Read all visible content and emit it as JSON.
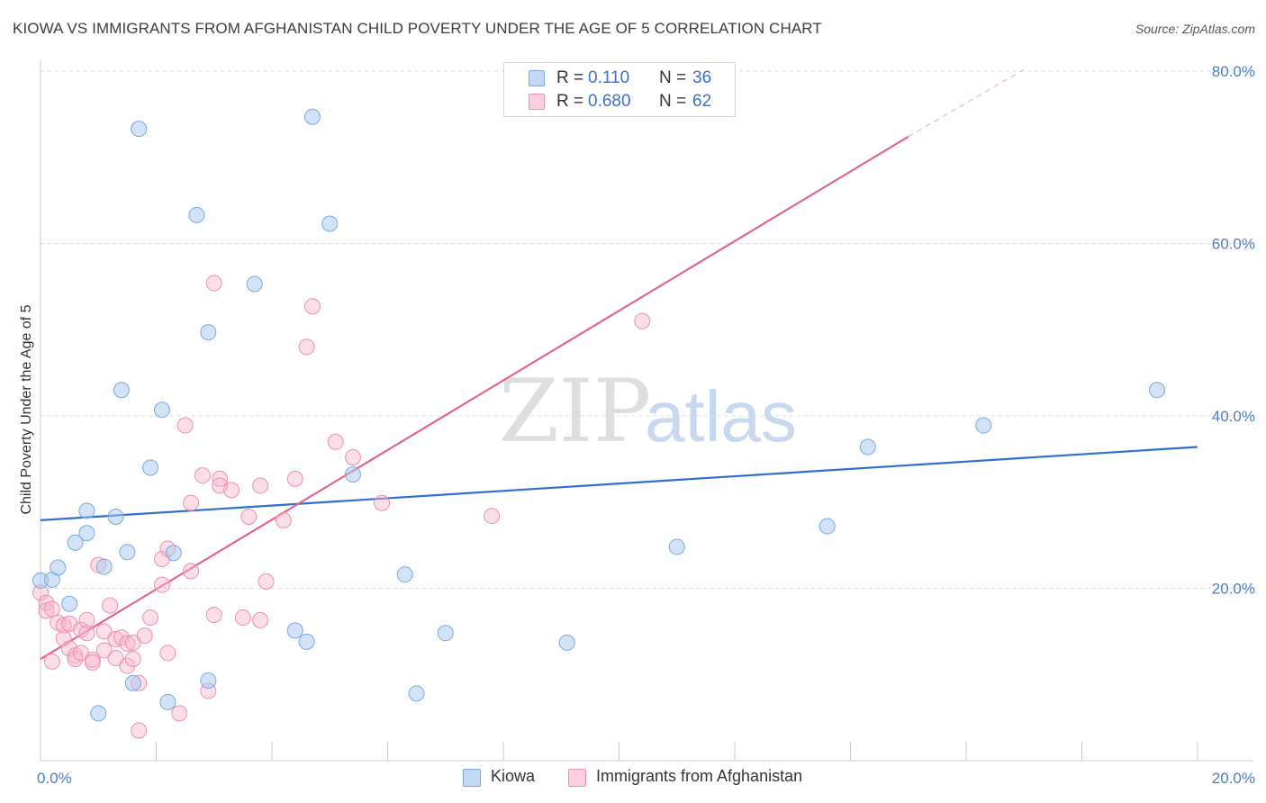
{
  "title": "KIOWA VS IMMIGRANTS FROM AFGHANISTAN CHILD POVERTY UNDER THE AGE OF 5 CORRELATION CHART",
  "source": "Source: ZipAtlas.com",
  "legend_top": {
    "rows": [
      {
        "r_label": "R = ",
        "r_value": "0.110",
        "n_label": "N = ",
        "n_value": "36",
        "color": "#a8c8f0"
      },
      {
        "r_label": "R = ",
        "r_value": "0.680",
        "n_label": "N = ",
        "n_value": "62",
        "color": "#f7b6c9"
      }
    ]
  },
  "legend_bottom": [
    {
      "label": "Kiowa",
      "color": "#a8c8f0"
    },
    {
      "label": "Immigrants from Afghanistan",
      "color": "#f7b6c9"
    }
  ],
  "watermark": {
    "zip": "ZIP",
    "atlas": "atlas"
  },
  "colors": {
    "blue_fill": "#a8c8f0",
    "blue_stroke": "#7aa8e0",
    "blue_line": "#2f6fd0",
    "pink_fill": "#f7b6c9",
    "pink_stroke": "#ec8fae",
    "pink_line": "#e0668f"
  },
  "chart_data": {
    "type": "scatter",
    "title": "KIOWA VS IMMIGRANTS FROM AFGHANISTAN CHILD POVERTY UNDER THE AGE OF 5 CORRELATION CHART",
    "xlabel": "",
    "ylabel": "Child Poverty Under the Age of 5",
    "xlim": [
      0,
      20
    ],
    "ylim": [
      0,
      80
    ],
    "x_tick_labels": [
      "0.0%",
      "20.0%"
    ],
    "y_ticks": [
      20,
      40,
      60,
      80
    ],
    "y_tick_labels": [
      "20.0%",
      "40.0%",
      "60.0%",
      "80.0%"
    ],
    "grid": true,
    "series": [
      {
        "name": "Kiowa",
        "r": 0.11,
        "n": 36,
        "trend": {
          "x0": 0,
          "y0": 27.9,
          "x1": 20,
          "y1": 36.4
        },
        "points": [
          [
            0.0,
            20.9
          ],
          [
            0.2,
            21.0
          ],
          [
            0.3,
            22.4
          ],
          [
            0.5,
            18.2
          ],
          [
            0.6,
            25.3
          ],
          [
            0.8,
            29.0
          ],
          [
            0.8,
            26.4
          ],
          [
            1.0,
            5.5
          ],
          [
            1.1,
            22.5
          ],
          [
            1.3,
            28.3
          ],
          [
            1.4,
            43.0
          ],
          [
            1.5,
            24.2
          ],
          [
            1.6,
            9.0
          ],
          [
            1.7,
            73.3
          ],
          [
            1.9,
            34.0
          ],
          [
            2.1,
            40.7
          ],
          [
            2.2,
            6.8
          ],
          [
            2.3,
            24.1
          ],
          [
            2.7,
            63.3
          ],
          [
            2.9,
            49.7
          ],
          [
            2.9,
            9.3
          ],
          [
            3.7,
            55.3
          ],
          [
            4.4,
            15.1
          ],
          [
            4.6,
            13.8
          ],
          [
            4.7,
            74.7
          ],
          [
            5.0,
            62.3
          ],
          [
            5.4,
            33.2
          ],
          [
            6.3,
            21.6
          ],
          [
            6.5,
            7.8
          ],
          [
            7.0,
            14.8
          ],
          [
            9.1,
            13.7
          ],
          [
            11.0,
            24.8
          ],
          [
            13.6,
            27.2
          ],
          [
            14.3,
            36.4
          ],
          [
            16.3,
            38.9
          ],
          [
            19.3,
            43.0
          ]
        ]
      },
      {
        "name": "Immigrants from Afghanistan",
        "r": 0.68,
        "n": 62,
        "trend": {
          "x0": 0,
          "y0": 11.8,
          "x1": 15,
          "y1": 72.4
        },
        "trend_dashed": {
          "x0": 15,
          "y0": 72.4,
          "x1": 17.0,
          "y1": 80.2
        },
        "points": [
          [
            0.0,
            19.5
          ],
          [
            0.1,
            18.3
          ],
          [
            0.1,
            17.4
          ],
          [
            0.2,
            17.6
          ],
          [
            0.2,
            11.5
          ],
          [
            0.3,
            16.0
          ],
          [
            0.4,
            14.2
          ],
          [
            0.4,
            15.7
          ],
          [
            0.5,
            15.9
          ],
          [
            0.5,
            13.0
          ],
          [
            0.6,
            12.2
          ],
          [
            0.6,
            11.8
          ],
          [
            0.7,
            12.5
          ],
          [
            0.7,
            15.2
          ],
          [
            0.8,
            14.8
          ],
          [
            0.8,
            16.3
          ],
          [
            0.9,
            11.7
          ],
          [
            0.9,
            11.4
          ],
          [
            1.0,
            22.7
          ],
          [
            1.1,
            15.0
          ],
          [
            1.1,
            12.8
          ],
          [
            1.2,
            18.0
          ],
          [
            1.3,
            14.1
          ],
          [
            1.3,
            11.9
          ],
          [
            1.4,
            14.3
          ],
          [
            1.5,
            13.6
          ],
          [
            1.5,
            11.0
          ],
          [
            1.6,
            13.7
          ],
          [
            1.6,
            11.8
          ],
          [
            1.7,
            9.0
          ],
          [
            1.7,
            3.5
          ],
          [
            1.8,
            14.5
          ],
          [
            1.9,
            16.6
          ],
          [
            2.1,
            20.4
          ],
          [
            2.1,
            23.4
          ],
          [
            2.2,
            24.6
          ],
          [
            2.2,
            12.5
          ],
          [
            2.4,
            5.5
          ],
          [
            2.5,
            38.9
          ],
          [
            2.6,
            22.0
          ],
          [
            2.6,
            29.9
          ],
          [
            2.8,
            33.1
          ],
          [
            2.9,
            8.1
          ],
          [
            3.0,
            55.4
          ],
          [
            3.0,
            16.9
          ],
          [
            3.1,
            32.7
          ],
          [
            3.1,
            31.9
          ],
          [
            3.3,
            31.4
          ],
          [
            3.5,
            16.6
          ],
          [
            3.6,
            28.3
          ],
          [
            3.8,
            16.3
          ],
          [
            3.8,
            31.9
          ],
          [
            3.9,
            20.8
          ],
          [
            4.2,
            27.9
          ],
          [
            4.4,
            32.7
          ],
          [
            4.6,
            48.0
          ],
          [
            4.7,
            52.7
          ],
          [
            5.1,
            37.0
          ],
          [
            5.4,
            35.2
          ],
          [
            5.9,
            29.9
          ],
          [
            7.8,
            28.4
          ],
          [
            10.4,
            51.0
          ]
        ]
      }
    ]
  }
}
